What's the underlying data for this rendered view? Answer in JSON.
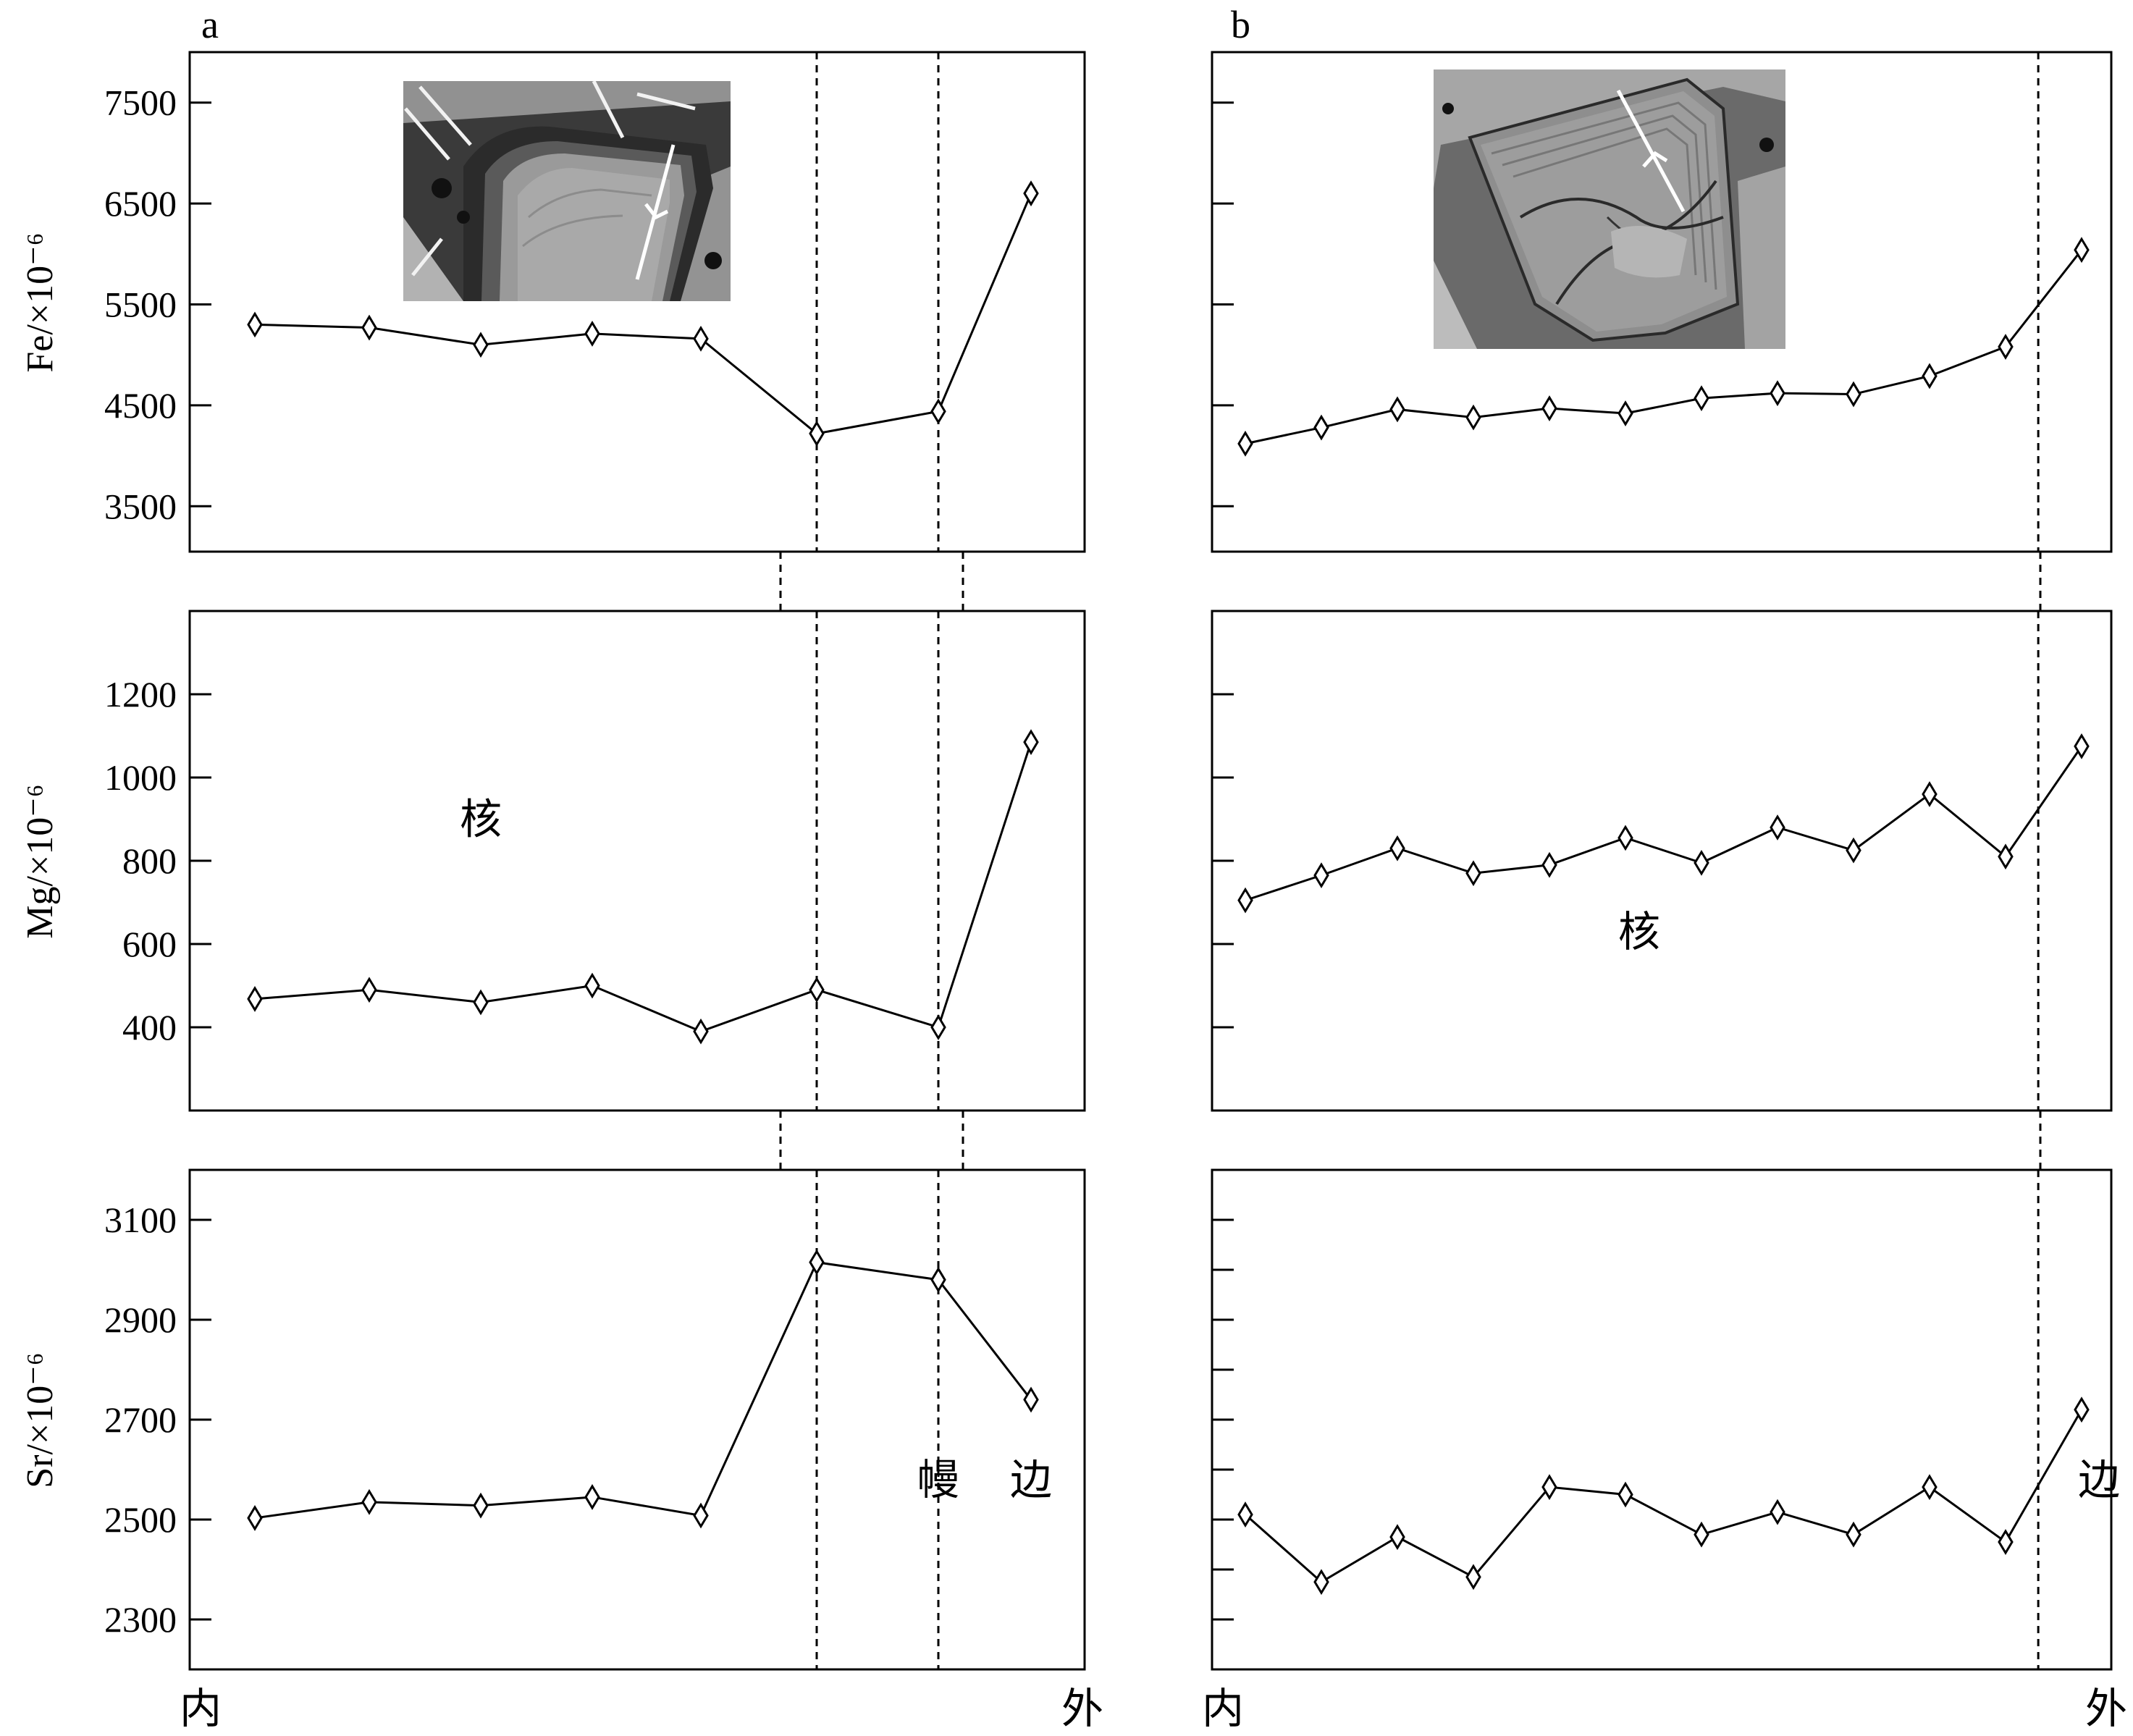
{
  "figure": {
    "panel_labels": [
      "a",
      "b"
    ],
    "x_start_label": "内",
    "x_end_label": "外"
  },
  "chart_data": [
    {
      "type": "line",
      "panel": "a",
      "element": "Fe",
      "ylabel": "Fe/×10⁻⁶",
      "ylim": [
        3050,
        8000
      ],
      "yticks": [
        3500,
        4500,
        5500,
        6500,
        7500
      ],
      "xlim": [
        0,
        10
      ],
      "x": [
        0.12,
        1.12,
        2.12,
        3.12,
        4.12,
        5.12,
        6.12,
        7.12
      ],
      "values": [
        5300,
        5270,
        5100,
        5210,
        5160,
        4220,
        4440,
        6600
      ],
      "boundaries": [
        4.87,
        6.55
      ],
      "zones": [
        {
          "label": "",
          "x": 0
        }
      ],
      "inset": "BSE image of crystal with profile arrow"
    },
    {
      "type": "line",
      "panel": "a",
      "element": "Mg",
      "ylabel": "Mg/×10⁻⁶",
      "ylim": [
        200,
        1400
      ],
      "yticks": [
        400,
        600,
        800,
        1000,
        1200
      ],
      "xlim": [
        0,
        10
      ],
      "x": [
        0.12,
        1.12,
        2.12,
        3.12,
        4.12,
        5.12,
        6.12,
        7.12
      ],
      "values": [
        468,
        490,
        460,
        500,
        390,
        490,
        400,
        1085
      ],
      "boundaries": [
        4.87,
        6.55
      ],
      "zones": [
        {
          "label": "核",
          "x": 2.0,
          "y": 900
        }
      ]
    },
    {
      "type": "line",
      "panel": "a",
      "element": "Sr",
      "ylabel": "Sr/×10⁻⁶",
      "ylim": [
        2200,
        3200
      ],
      "yticks": [
        2300,
        2500,
        2700,
        2900,
        3100
      ],
      "xlim": [
        0,
        10
      ],
      "x": [
        0.12,
        1.12,
        2.12,
        3.12,
        4.12,
        5.12,
        6.12,
        7.12
      ],
      "values": [
        2503,
        2535,
        2528,
        2545,
        2508,
        3015,
        2980,
        2740
      ],
      "boundaries": [
        4.87,
        6.55
      ],
      "zones": [
        {
          "label": "幔",
          "x": 5.8,
          "y": 2580
        },
        {
          "label": "边",
          "x": 7.25,
          "y": 2580
        }
      ]
    },
    {
      "type": "line",
      "panel": "b",
      "element": "Fe",
      "ylabel": "",
      "ylim": [
        3050,
        8000
      ],
      "yticks": [
        3500,
        4500,
        5500,
        6500,
        7500
      ],
      "xlim": [
        0,
        10
      ],
      "x": [
        0.12,
        1.12,
        2.12,
        3.12,
        4.12,
        5.12,
        6.12,
        7.12,
        8.12,
        9.12,
        10.12,
        11.12
      ],
      "values": [
        4120,
        4280,
        4460,
        4380,
        4470,
        4420,
        4570,
        4620,
        4610,
        4790,
        5080,
        6040
      ],
      "boundaries": [
        10.55
      ],
      "zones": [
        {
          "label": "",
          "x": 0
        }
      ],
      "inset": "BSE image of crystal with profile arrow"
    },
    {
      "type": "line",
      "panel": "b",
      "element": "Mg",
      "ylabel": "",
      "ylim": [
        200,
        1400
      ],
      "yticks": [
        400,
        600,
        800,
        1000,
        1200
      ],
      "xlim": [
        0,
        10
      ],
      "x": [
        0.12,
        1.12,
        2.12,
        3.12,
        4.12,
        5.12,
        6.12,
        7.12,
        8.12,
        9.12,
        10.12,
        11.12
      ],
      "values": [
        705,
        765,
        830,
        770,
        790,
        855,
        795,
        880,
        825,
        960,
        810,
        1075
      ],
      "boundaries": [
        10.55
      ],
      "zones": [
        {
          "label": "核",
          "x": 5.3,
          "y": 630
        }
      ]
    },
    {
      "type": "line",
      "panel": "b",
      "element": "Sr",
      "ylabel": "",
      "ylim": [
        2200,
        3200
      ],
      "yticks": [
        2300,
        2400,
        2500,
        2600,
        2700,
        2800,
        2900,
        3000,
        3100
      ],
      "xlim": [
        0,
        10
      ],
      "x": [
        0.12,
        1.12,
        2.12,
        3.12,
        4.12,
        5.12,
        6.12,
        7.12,
        8.12,
        9.12,
        10.12,
        11.12
      ],
      "values": [
        2510,
        2375,
        2465,
        2385,
        2565,
        2550,
        2470,
        2515,
        2470,
        2565,
        2455,
        2720
      ],
      "boundaries": [
        10.55
      ],
      "zones": [
        {
          "label": "边",
          "x": 11.35,
          "y": 2580
        }
      ]
    }
  ]
}
